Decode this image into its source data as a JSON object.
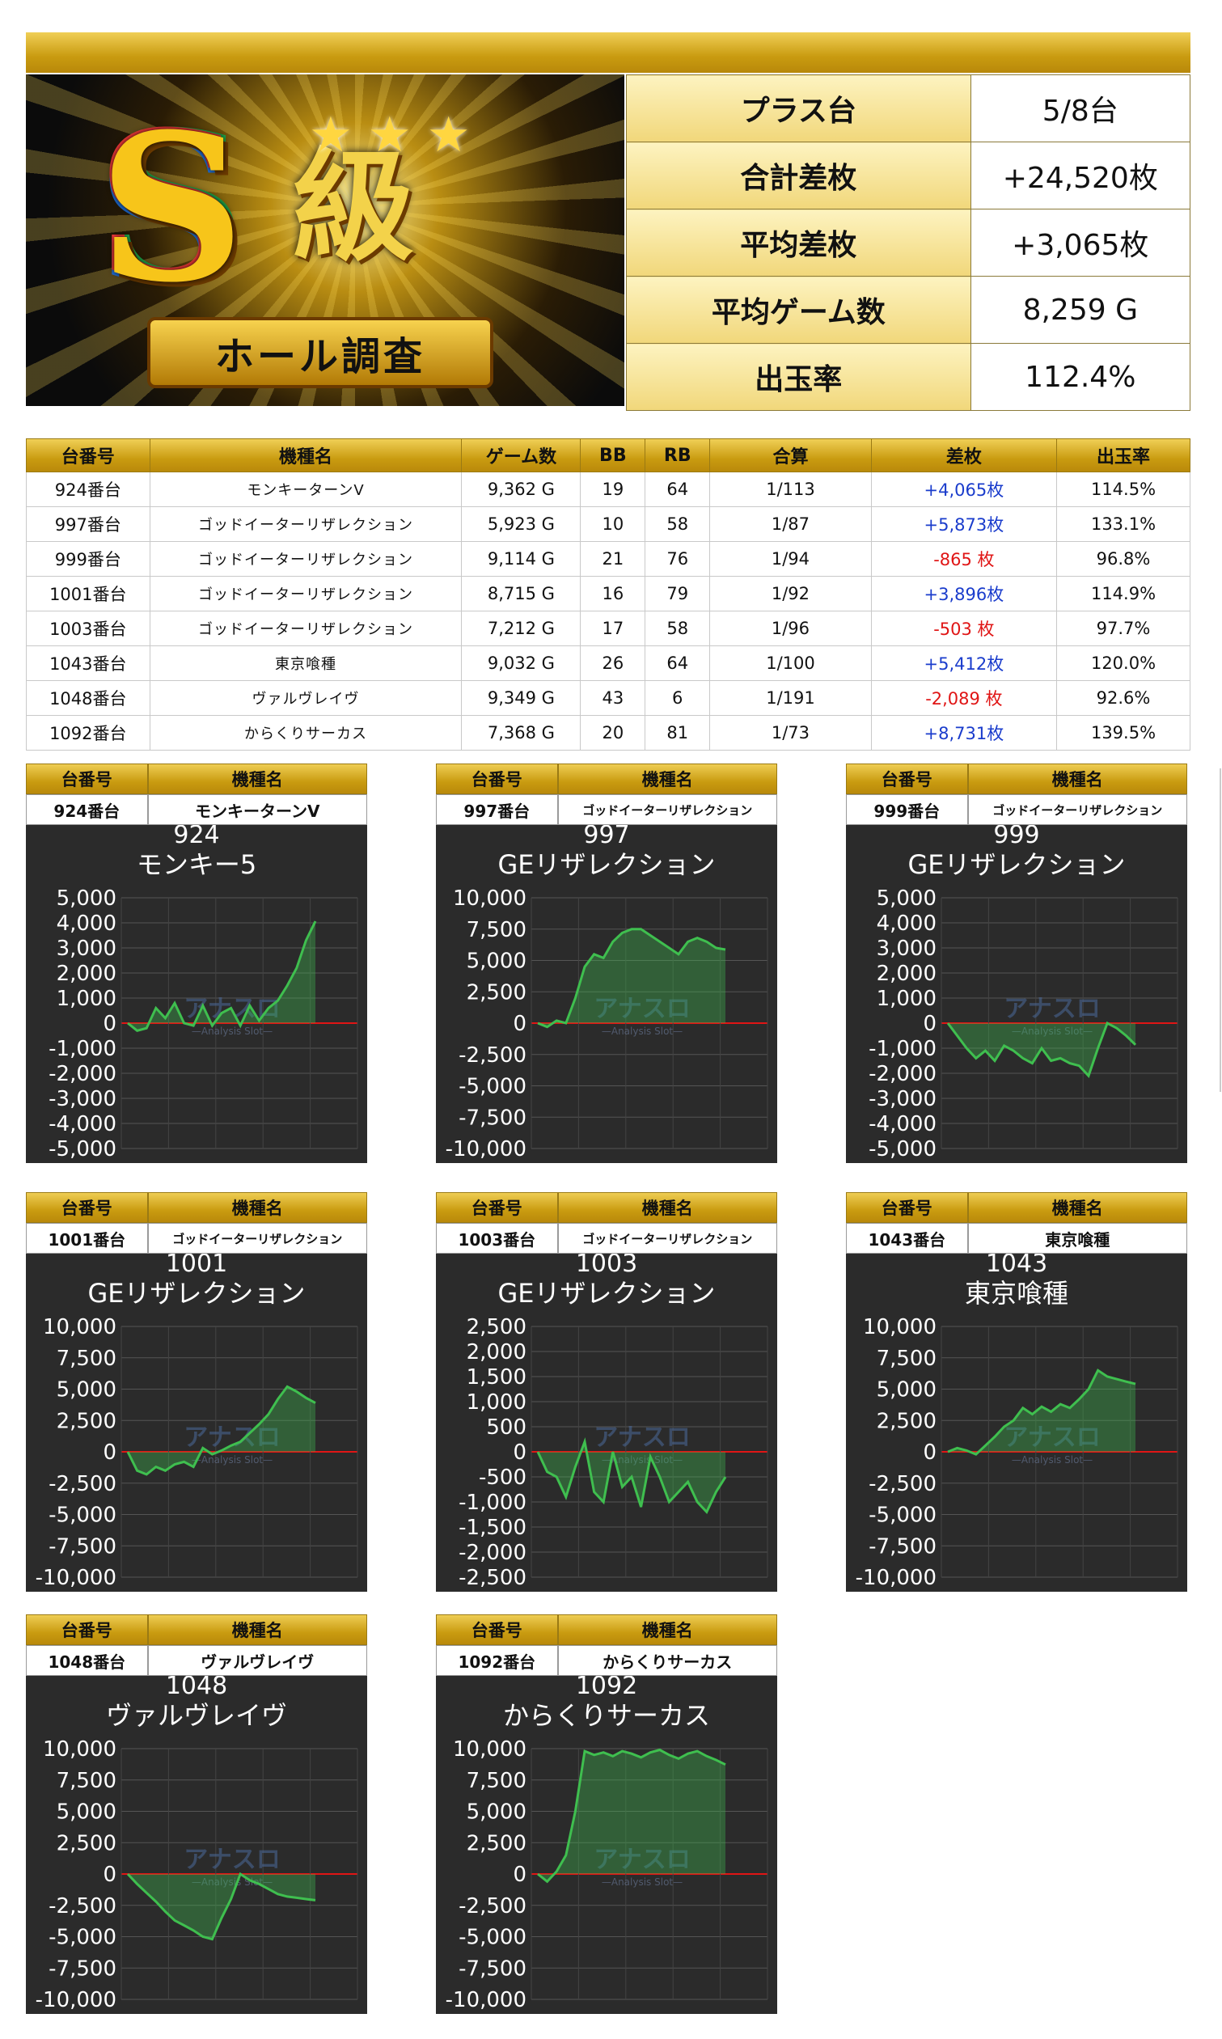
{
  "banner": {
    "big_letter": "S",
    "grade": "級",
    "ribbon": "ホール調査"
  },
  "summary": [
    {
      "label": "プラス台",
      "value": "5/8台"
    },
    {
      "label": "合計差枚",
      "value": "+24,520枚"
    },
    {
      "label": "平均差枚",
      "value": "+3,065枚"
    },
    {
      "label": "平均ゲーム数",
      "value": "8,259 G"
    },
    {
      "label": "出玉率",
      "value": "112.4%"
    }
  ],
  "table": {
    "headers": [
      "台番号",
      "機種名",
      "ゲーム数",
      "BB",
      "RB",
      "合算",
      "差枚",
      "出玉率"
    ],
    "rows": [
      {
        "no": "924番台",
        "name": "モンキーターンV",
        "games": "9,362 G",
        "bb": "19",
        "rb": "64",
        "gassan": "1/113",
        "diff": "+4,065枚",
        "rate": "114.5%"
      },
      {
        "no": "997番台",
        "name": "ゴッドイーターリザレクション",
        "games": "5,923 G",
        "bb": "10",
        "rb": "58",
        "gassan": "1/87",
        "diff": "+5,873枚",
        "rate": "133.1%"
      },
      {
        "no": "999番台",
        "name": "ゴッドイーターリザレクション",
        "games": "9,114 G",
        "bb": "21",
        "rb": "76",
        "gassan": "1/94",
        "diff": "-865 枚",
        "rate": "96.8%"
      },
      {
        "no": "1001番台",
        "name": "ゴッドイーターリザレクション",
        "games": "8,715 G",
        "bb": "16",
        "rb": "79",
        "gassan": "1/92",
        "diff": "+3,896枚",
        "rate": "114.9%"
      },
      {
        "no": "1003番台",
        "name": "ゴッドイーターリザレクション",
        "games": "7,212 G",
        "bb": "17",
        "rb": "58",
        "gassan": "1/96",
        "diff": "-503 枚",
        "rate": "97.7%"
      },
      {
        "no": "1043番台",
        "name": "東京喰種",
        "games": "9,032 G",
        "bb": "26",
        "rb": "64",
        "gassan": "1/100",
        "diff": "+5,412枚",
        "rate": "120.0%"
      },
      {
        "no": "1048番台",
        "name": "ヴァルヴレイヴ",
        "games": "9,349 G",
        "bb": "43",
        "rb": "6",
        "gassan": "1/191",
        "diff": "-2,089 枚",
        "rate": "92.6%"
      },
      {
        "no": "1092番台",
        "name": "からくりサーカス",
        "games": "7,368 G",
        "bb": "20",
        "rb": "81",
        "gassan": "1/73",
        "diff": "+8,731枚",
        "rate": "139.5%"
      }
    ]
  },
  "cards": [
    {
      "h_no": "台番号",
      "h_name": "機種名",
      "no": "924番台",
      "name": "モンキーターンV",
      "title1": "924",
      "title2": "モンキー5",
      "watermark": "アナスロ",
      "watermark_sub": "—Analysis Slot—"
    },
    {
      "h_no": "台番号",
      "h_name": "機種名",
      "no": "997番台",
      "name": "ゴッドイーターリザレクション",
      "title1": "997",
      "title2": "GEリザレクション",
      "watermark": "アナスロ",
      "watermark_sub": "—Analysis Slot—"
    },
    {
      "h_no": "台番号",
      "h_name": "機種名",
      "no": "999番台",
      "name": "ゴッドイーターリザレクション",
      "title1": "999",
      "title2": "GEリザレクション",
      "watermark": "アナスロ",
      "watermark_sub": "—Analysis Slot—"
    },
    {
      "h_no": "台番号",
      "h_name": "機種名",
      "no": "1001番台",
      "name": "ゴッドイーターリザレクション",
      "title1": "1001",
      "title2": "GEリザレクション",
      "watermark": "アナスロ",
      "watermark_sub": "—Analysis Slot—"
    },
    {
      "h_no": "台番号",
      "h_name": "機種名",
      "no": "1003番台",
      "name": "ゴッドイーターリザレクション",
      "title1": "1003",
      "title2": "GEリザレクション",
      "watermark": "アナスロ",
      "watermark_sub": "—Analysis Slot—"
    },
    {
      "h_no": "台番号",
      "h_name": "機種名",
      "no": "1043番台",
      "name": "東京喰種",
      "title1": "1043",
      "title2": "東京喰種",
      "watermark": "アナスロ",
      "watermark_sub": "—Analysis Slot—"
    },
    {
      "h_no": "台番号",
      "h_name": "機種名",
      "no": "1048番台",
      "name": "ヴァルヴレイヴ",
      "title1": "1048",
      "title2": "ヴァルヴレイヴ",
      "watermark": "アナスロ",
      "watermark_sub": "—Analysis Slot—"
    },
    {
      "h_no": "台番号",
      "h_name": "機種名",
      "no": "1092番台",
      "name": "からくりサーカス",
      "title1": "1092",
      "title2": "からくりサーカス",
      "watermark": "アナスロ",
      "watermark_sub": "—Analysis Slot—"
    }
  ],
  "colors": {
    "gold": "#d4a81e",
    "positive": "#1a3ccc",
    "negative": "#e01515",
    "line": "#3fbf4f",
    "zero_line": "#e01515",
    "graph_bg": "#2b2b2b"
  },
  "chart_data": [
    {
      "type": "area",
      "ylim": [
        -5000,
        5000
      ],
      "yticks": [
        "5,000",
        "4,000",
        "3,000",
        "2,000",
        "1,000",
        "0",
        "-1,000",
        "-2,000",
        "-3,000",
        "-4,000",
        "-5,000"
      ],
      "x": [
        0,
        1,
        2,
        3,
        4,
        5,
        6,
        7,
        8,
        9,
        10,
        11,
        12,
        13,
        14,
        15,
        16,
        17,
        18,
        19,
        20
      ],
      "values": [
        0,
        -300,
        -200,
        600,
        200,
        800,
        0,
        -100,
        700,
        -100,
        400,
        600,
        -100,
        700,
        100,
        600,
        900,
        1500,
        2200,
        3300,
        4065
      ]
    },
    {
      "type": "area",
      "ylim": [
        -10000,
        10000
      ],
      "yticks": [
        "10,000",
        "7,500",
        "5,000",
        "2,500",
        "0",
        "-2,500",
        "-5,000",
        "-7,500",
        "-10,000"
      ],
      "x": [
        0,
        1,
        2,
        3,
        4,
        5,
        6,
        7,
        8,
        9,
        10,
        11,
        12,
        13,
        14,
        15,
        16,
        17,
        18,
        19,
        20
      ],
      "values": [
        0,
        -300,
        200,
        0,
        2000,
        4500,
        5500,
        5200,
        6500,
        7200,
        7500,
        7500,
        7000,
        6500,
        6000,
        5500,
        6500,
        6800,
        6500,
        6000,
        5873
      ]
    },
    {
      "type": "area",
      "ylim": [
        -5000,
        5000
      ],
      "yticks": [
        "5,000",
        "4,000",
        "3,000",
        "2,000",
        "1,000",
        "0",
        "-1,000",
        "-2,000",
        "-3,000",
        "-4,000",
        "-5,000"
      ],
      "x": [
        0,
        1,
        2,
        3,
        4,
        5,
        6,
        7,
        8,
        9,
        10,
        11,
        12,
        13,
        14,
        15,
        16,
        17,
        18,
        19,
        20
      ],
      "values": [
        0,
        -500,
        -1000,
        -1400,
        -1100,
        -1500,
        -900,
        -1100,
        -1400,
        -1600,
        -1000,
        -1500,
        -1400,
        -1600,
        -1700,
        -2100,
        -1000,
        0,
        -200,
        -500,
        -865
      ]
    },
    {
      "type": "area",
      "ylim": [
        -10000,
        10000
      ],
      "yticks": [
        "10,000",
        "7,500",
        "5,000",
        "2,500",
        "0",
        "-2,500",
        "-5,000",
        "-7,500",
        "-10,000"
      ],
      "x": [
        0,
        1,
        2,
        3,
        4,
        5,
        6,
        7,
        8,
        9,
        10,
        11,
        12,
        13,
        14,
        15,
        16,
        17,
        18,
        19,
        20
      ],
      "values": [
        0,
        -1500,
        -1800,
        -1200,
        -1500,
        -1000,
        -800,
        -1200,
        300,
        -200,
        100,
        500,
        800,
        1500,
        2200,
        3000,
        4200,
        5200,
        4800,
        4300,
        3896
      ]
    },
    {
      "type": "area",
      "ylim": [
        -2500,
        2500
      ],
      "yticks": [
        "2,500",
        "2,000",
        "1,500",
        "1,000",
        "500",
        "0",
        "-500",
        "-1,000",
        "-1,500",
        "-2,000",
        "-2,500"
      ],
      "x": [
        0,
        1,
        2,
        3,
        4,
        5,
        6,
        7,
        8,
        9,
        10,
        11,
        12,
        13,
        14,
        15,
        16,
        17,
        18,
        19,
        20
      ],
      "values": [
        0,
        -400,
        -500,
        -900,
        -300,
        200,
        -800,
        -1000,
        0,
        -700,
        -500,
        -1100,
        -100,
        -500,
        -1000,
        -800,
        -600,
        -1000,
        -1200,
        -800,
        -503
      ]
    },
    {
      "type": "area",
      "ylim": [
        -10000,
        10000
      ],
      "yticks": [
        "10,000",
        "7,500",
        "5,000",
        "2,500",
        "0",
        "-2,500",
        "-5,000",
        "-7,500",
        "-10,000"
      ],
      "x": [
        0,
        1,
        2,
        3,
        4,
        5,
        6,
        7,
        8,
        9,
        10,
        11,
        12,
        13,
        14,
        15,
        16,
        17,
        18,
        19,
        20
      ],
      "values": [
        0,
        300,
        100,
        -200,
        500,
        1200,
        2000,
        2500,
        3500,
        3000,
        3600,
        3200,
        3800,
        3500,
        4200,
        5000,
        6500,
        6000,
        5800,
        5600,
        5412
      ]
    },
    {
      "type": "area",
      "ylim": [
        -10000,
        10000
      ],
      "yticks": [
        "10,000",
        "7,500",
        "5,000",
        "2,500",
        "0",
        "-2,500",
        "-5,000",
        "-7,500",
        "-10,000"
      ],
      "x": [
        0,
        1,
        2,
        3,
        4,
        5,
        6,
        7,
        8,
        9,
        10,
        11,
        12,
        13,
        14,
        15,
        16,
        17,
        18,
        19,
        20
      ],
      "values": [
        0,
        -800,
        -1500,
        -2200,
        -3000,
        -3700,
        -4100,
        -4500,
        -5000,
        -5200,
        -3500,
        -2000,
        0,
        -500,
        -800,
        -1200,
        -1600,
        -1800,
        -1900,
        -2000,
        -2089
      ]
    },
    {
      "type": "area",
      "ylim": [
        -10000,
        10000
      ],
      "yticks": [
        "10,000",
        "7,500",
        "5,000",
        "2,500",
        "0",
        "-2,500",
        "-5,000",
        "-7,500",
        "-10,000"
      ],
      "x": [
        0,
        1,
        2,
        3,
        4,
        5,
        6,
        7,
        8,
        9,
        10,
        11,
        12,
        13,
        14,
        15,
        16,
        17,
        18,
        19,
        20
      ],
      "values": [
        0,
        -600,
        200,
        1500,
        5000,
        9800,
        9500,
        9700,
        9400,
        9800,
        9600,
        9300,
        9700,
        9900,
        9500,
        9200,
        9600,
        9800,
        9400,
        9100,
        8731
      ]
    }
  ]
}
